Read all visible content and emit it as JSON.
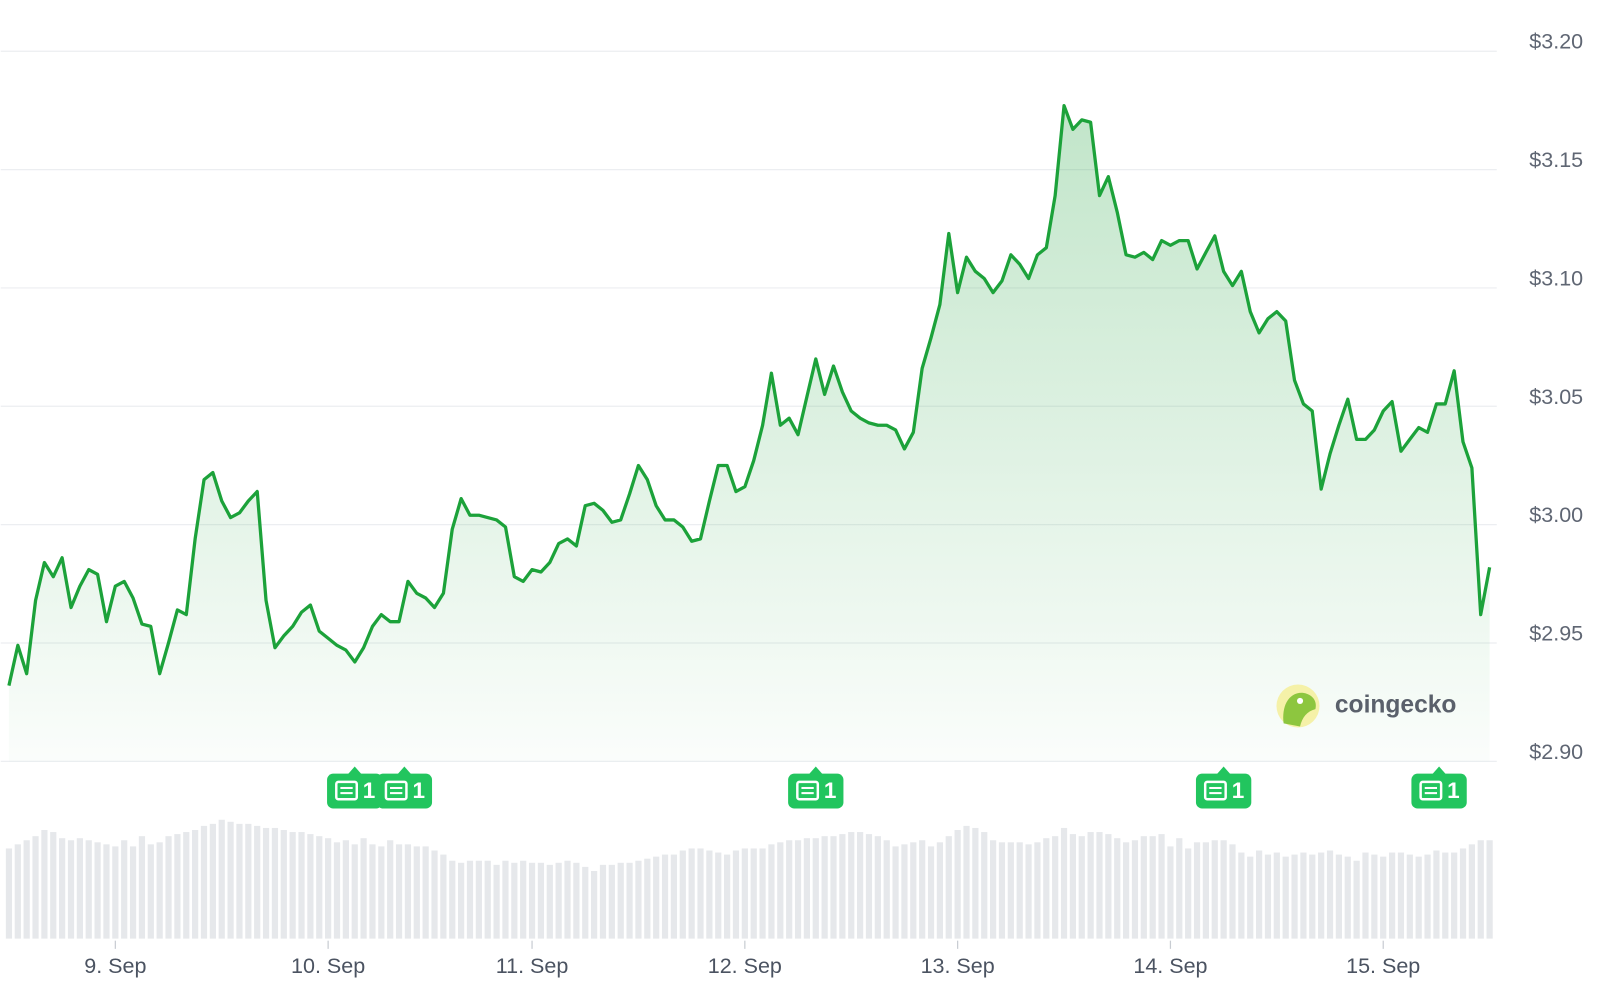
{
  "chart_data": {
    "type": "line",
    "watermark": "coingecko",
    "xlim": [
      0,
      167
    ],
    "xticks": [
      {
        "value": 12,
        "label": "9. Sep"
      },
      {
        "value": 36,
        "label": "10. Sep"
      },
      {
        "value": 59,
        "label": "11. Sep"
      },
      {
        "value": 83,
        "label": "12. Sep"
      },
      {
        "value": 107,
        "label": "13. Sep"
      },
      {
        "value": 131,
        "label": "14. Sep"
      },
      {
        "value": 155,
        "label": "15. Sep"
      }
    ],
    "ylim": [
      2.9,
      3.2
    ],
    "yticks": [
      {
        "value": 2.9,
        "label": "$2.90"
      },
      {
        "value": 2.95,
        "label": "$2.95"
      },
      {
        "value": 3.0,
        "label": "$3.00"
      },
      {
        "value": 3.05,
        "label": "$3.05"
      },
      {
        "value": 3.1,
        "label": "$3.10"
      },
      {
        "value": 3.15,
        "label": "$3.15"
      },
      {
        "value": 3.2,
        "label": "$3.20"
      }
    ],
    "grid": true,
    "series": [
      {
        "color": "#1ca23a",
        "values": [
          2.932,
          2.949,
          2.937,
          2.968,
          2.984,
          2.978,
          2.986,
          2.965,
          2.974,
          2.981,
          2.979,
          2.959,
          2.974,
          2.976,
          2.969,
          2.958,
          2.957,
          2.937,
          2.95,
          2.964,
          2.962,
          2.994,
          3.019,
          3.022,
          3.01,
          3.003,
          3.005,
          3.01,
          3.014,
          2.968,
          2.948,
          2.953,
          2.957,
          2.963,
          2.966,
          2.955,
          2.952,
          2.949,
          2.947,
          2.942,
          2.948,
          2.957,
          2.962,
          2.959,
          2.959,
          2.976,
          2.971,
          2.969,
          2.965,
          2.971,
          2.998,
          3.011,
          3.004,
          3.004,
          3.003,
          3.002,
          2.999,
          2.978,
          2.976,
          2.981,
          2.98,
          2.984,
          2.992,
          2.994,
          2.991,
          3.008,
          3.009,
          3.006,
          3.001,
          3.002,
          3.013,
          3.025,
          3.019,
          3.008,
          3.002,
          3.002,
          2.999,
          2.993,
          2.994,
          3.01,
          3.025,
          3.025,
          3.014,
          3.016,
          3.027,
          3.042,
          3.064,
          3.042,
          3.045,
          3.038,
          3.054,
          3.07,
          3.055,
          3.067,
          3.056,
          3.048,
          3.045,
          3.043,
          3.042,
          3.042,
          3.04,
          3.032,
          3.039,
          3.066,
          3.079,
          3.093,
          3.123,
          3.098,
          3.113,
          3.107,
          3.104,
          3.098,
          3.103,
          3.114,
          3.11,
          3.104,
          3.114,
          3.117,
          3.139,
          3.177,
          3.167,
          3.171,
          3.17,
          3.139,
          3.147,
          3.132,
          3.114,
          3.113,
          3.115,
          3.112,
          3.12,
          3.118,
          3.12,
          3.12,
          3.108,
          3.115,
          3.122,
          3.107,
          3.101,
          3.107,
          3.09,
          3.081,
          3.087,
          3.09,
          3.086,
          3.061,
          3.051,
          3.048,
          3.015,
          3.03,
          3.042,
          3.053,
          3.036,
          3.036,
          3.04,
          3.048,
          3.052,
          3.031,
          3.036,
          3.041,
          3.039,
          3.051,
          3.051,
          3.065,
          3.035,
          3.024,
          2.962,
          2.982
        ]
      }
    ],
    "volume": {
      "color": "#e6e8eb",
      "values": [
        88,
        92,
        96,
        100,
        106,
        104,
        98,
        96,
        98,
        96,
        94,
        92,
        90,
        96,
        90,
        100,
        92,
        94,
        100,
        102,
        104,
        106,
        110,
        112,
        116,
        114,
        112,
        112,
        110,
        108,
        108,
        106,
        104,
        104,
        102,
        100,
        98,
        94,
        96,
        92,
        98,
        92,
        90,
        96,
        92,
        92,
        90,
        90,
        86,
        82,
        76,
        74,
        76,
        76,
        76,
        72,
        76,
        74,
        76,
        74,
        74,
        72,
        74,
        76,
        74,
        70,
        66,
        72,
        72,
        74,
        74,
        76,
        78,
        80,
        82,
        82,
        86,
        88,
        88,
        86,
        84,
        82,
        86,
        88,
        88,
        88,
        92,
        94,
        96,
        96,
        98,
        98,
        100,
        100,
        102,
        104,
        104,
        102,
        100,
        96,
        90,
        92,
        94,
        96,
        90,
        94,
        100,
        106,
        110,
        108,
        104,
        96,
        94,
        94,
        94,
        92,
        94,
        98,
        100,
        108,
        102,
        100,
        104,
        104,
        102,
        98,
        94,
        96,
        100,
        100,
        102,
        90,
        98,
        88,
        94,
        94,
        96,
        96,
        92,
        84,
        80,
        86,
        82,
        84,
        80,
        82,
        84,
        82,
        84,
        86,
        82,
        80,
        76,
        84,
        82,
        80,
        84,
        84,
        82,
        80,
        82,
        86,
        84,
        84,
        88,
        92,
        96,
        96
      ]
    },
    "events": {
      "color": "#22c55e",
      "items": [
        {
          "x": 39,
          "label": "1"
        },
        {
          "x": 44.6,
          "label": "1"
        },
        {
          "x": 91,
          "label": "1"
        },
        {
          "x": 137,
          "label": "1"
        },
        {
          "x": 161.3,
          "label": "1"
        }
      ]
    }
  }
}
